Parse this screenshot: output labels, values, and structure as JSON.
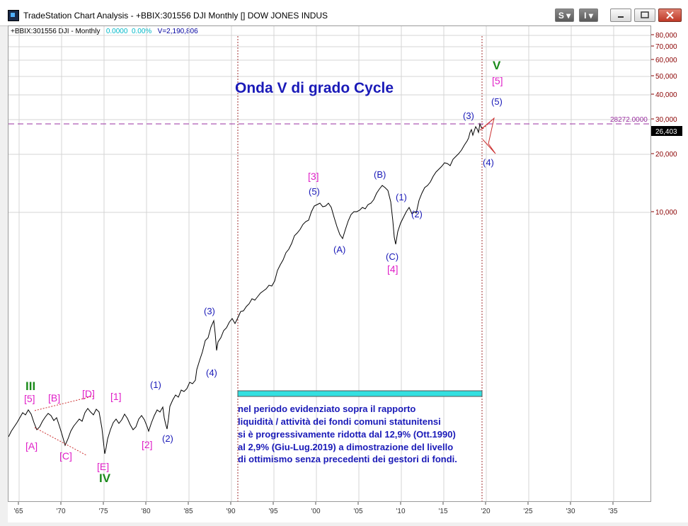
{
  "window": {
    "title": "TradeStation Chart Analysis - +BBIX:301556 DJI Monthly [] DOW JONES INDUS",
    "btn_s": "S",
    "btn_i": "I"
  },
  "chart": {
    "symbol_line": "+BBIX:301556 DJI - Monthly",
    "change": "0.0000",
    "change_pct": "0.00%",
    "volume": "V=2,190,806",
    "heading": "Onda V di grado Cycle",
    "reference_level": "28272.0000",
    "last_price": "26,403",
    "note_lines": [
      "nel periodo evidenziato sopra il rapporto",
      "liquidità / attività dei fondi comuni statunitensi",
      "si è progressivamente ridotta dal 12,9% (Ott.1990)",
      "al 2,9% (Giu-Lug.2019) a dimostrazione del livello",
      "di ottimismo senza precedenti dei gestori di fondi."
    ],
    "y_ticks": [
      "80,000",
      "70,000",
      "60,000",
      "50,000",
      "40,000",
      "30,000",
      "20,000",
      "10,000"
    ],
    "x_ticks": [
      "'65",
      "'70",
      "'75",
      "'80",
      "'85",
      "'90",
      "'95",
      "'00",
      "'05",
      "'10",
      "'15",
      "'20",
      "'25",
      "'30",
      "'35"
    ],
    "wave_labels": {
      "III": "III",
      "IV": "IV",
      "V": "V",
      "A1": "[A]",
      "B1": "[B]",
      "C1": "[C]",
      "D1": "[D]",
      "E1": "[E]",
      "w5a": "[5]",
      "w1a": "[1]",
      "w2a": "[2]",
      "w3a": "[3]",
      "w4a": "[4]",
      "w5b": "[5]",
      "p1": "(1)",
      "p2": "(2)",
      "p3": "(3)",
      "p4": "(4)",
      "p5": "(5)",
      "pA": "(A)",
      "pB": "(B)",
      "pC": "(C)",
      "q1": "(1)",
      "q2": "(2)",
      "q3": "(3)",
      "q4": "(4)",
      "q5": "(5)"
    },
    "colors": {
      "wave_blue": "#1a1ab8",
      "wave_magenta": "#e020c8",
      "wave_green": "#1a8a1a",
      "highlight_bar": "#33e0e0",
      "axis_text": "#8a0000",
      "dashed_level": "#9a30a0",
      "price_line": "#000000"
    }
  }
}
